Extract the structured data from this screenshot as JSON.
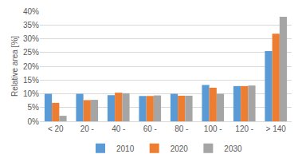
{
  "chart_data": {
    "type": "bar",
    "y_label": "Relative area [%]",
    "categories": [
      "< 20",
      "20 -",
      "40 -",
      "60 -",
      "80 -",
      "100 -",
      "120 -",
      "> 140"
    ],
    "series": [
      {
        "name": "2010",
        "color": "#5b9bd5",
        "values": [
          10,
          10,
          9.5,
          9.2,
          10,
          13.2,
          12.8,
          25.5
        ]
      },
      {
        "name": "2020",
        "color": "#ed7d31",
        "values": [
          6.7,
          7.7,
          10.4,
          9.2,
          9.3,
          12.2,
          12.8,
          31.8
        ]
      },
      {
        "name": "2030",
        "color": "#a5a5a5",
        "values": [
          2,
          7.8,
          10.2,
          9.4,
          9.3,
          10,
          13,
          38
        ]
      }
    ],
    "ylim": [
      0,
      40
    ],
    "yticks": [
      {
        "value": 0,
        "label": "0%"
      },
      {
        "value": 5,
        "label": "5%"
      },
      {
        "value": 10,
        "label": "10%"
      },
      {
        "value": 15,
        "label": "15%"
      },
      {
        "value": 20,
        "label": "20%"
      },
      {
        "value": 25,
        "label": "25%"
      },
      {
        "value": 30,
        "label": "30%"
      },
      {
        "value": 35,
        "label": "35%"
      },
      {
        "value": 40,
        "label": "40%"
      }
    ],
    "grid": true,
    "legend": "bottom"
  }
}
